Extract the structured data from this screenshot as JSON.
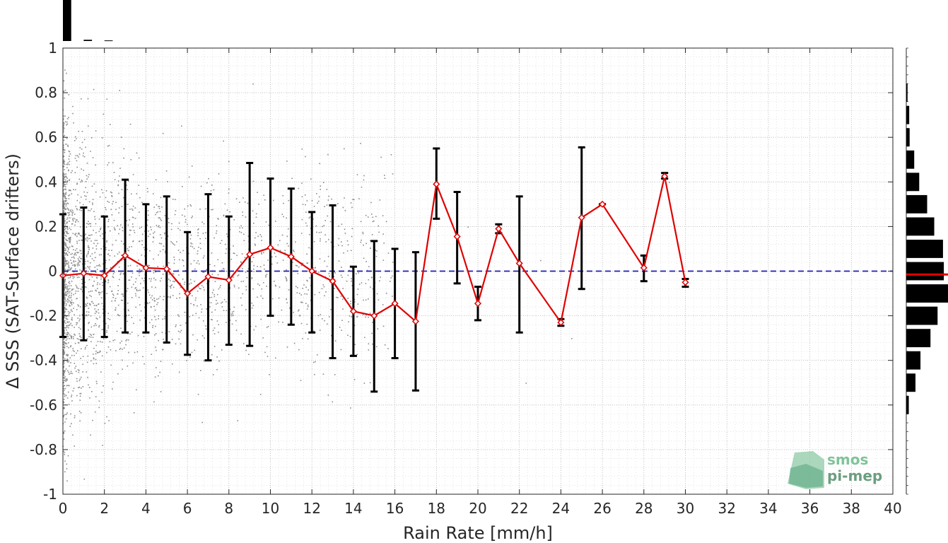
{
  "chart_data": {
    "type": "scatter",
    "xlabel": "Rain Rate [mm/h]",
    "ylabel": "Δ SSS (SAT-Surface drifters)",
    "xlim": [
      0,
      40
    ],
    "ylim": [
      -1,
      1
    ],
    "x_ticks": [
      "0",
      "2",
      "4",
      "6",
      "8",
      "10",
      "12",
      "14",
      "16",
      "18",
      "20",
      "22",
      "24",
      "26",
      "28",
      "30",
      "32",
      "34",
      "36",
      "38",
      "40"
    ],
    "y_ticks": [
      "1",
      "0.8",
      "0.6",
      "0.4",
      "0.2",
      "0",
      "-0.2",
      "-0.4",
      "-0.6",
      "-0.8",
      "-1"
    ],
    "grid": true,
    "reference_line": {
      "y": 0,
      "style": "dashed",
      "color": "#1f1fb4"
    },
    "binned_mean": {
      "color": "#e00000",
      "x": [
        0,
        1,
        2,
        3,
        4,
        5,
        6,
        7,
        8,
        9,
        10,
        11,
        12,
        13,
        14,
        15,
        16,
        17,
        18,
        19,
        20,
        21,
        22,
        24,
        25,
        26,
        28,
        29,
        30
      ],
      "y": [
        -0.02,
        -0.01,
        -0.02,
        0.07,
        0.015,
        0.01,
        -0.1,
        -0.025,
        -0.04,
        0.075,
        0.105,
        0.065,
        0.0,
        -0.045,
        -0.18,
        -0.2,
        -0.145,
        -0.225,
        0.39,
        0.155,
        -0.145,
        0.19,
        0.035,
        -0.23,
        0.24,
        0.3,
        0.015,
        0.425,
        -0.05
      ],
      "y_low": [
        -0.295,
        -0.31,
        -0.295,
        -0.275,
        -0.275,
        -0.32,
        -0.375,
        -0.4,
        -0.33,
        -0.335,
        -0.2,
        -0.24,
        -0.275,
        -0.39,
        -0.38,
        -0.54,
        -0.39,
        -0.535,
        0.235,
        -0.055,
        -0.22,
        0.17,
        -0.275,
        -0.245,
        -0.08,
        0.3,
        -0.045,
        0.415,
        -0.07
      ],
      "y_high": [
        0.255,
        0.285,
        0.245,
        0.41,
        0.3,
        0.335,
        0.175,
        0.345,
        0.245,
        0.485,
        0.415,
        0.37,
        0.265,
        0.295,
        0.02,
        0.135,
        0.1,
        0.085,
        0.55,
        0.355,
        -0.07,
        0.21,
        0.335,
        -0.215,
        0.555,
        0.3,
        0.07,
        0.44,
        -0.035
      ]
    },
    "scatter_color": "#8c8c8c",
    "top_histogram": {
      "x": [
        0,
        1,
        2
      ],
      "relative_counts": [
        1.0,
        0.03,
        0.015
      ],
      "color": "#000000"
    },
    "right_histogram": {
      "y": [
        0.8,
        0.7,
        0.6,
        0.5,
        0.4,
        0.3,
        0.2,
        0.1,
        0.0,
        -0.1,
        -0.2,
        -0.3,
        -0.4,
        -0.5,
        -0.6
      ],
      "relative_counts": [
        0.03,
        0.07,
        0.08,
        0.19,
        0.31,
        0.5,
        0.67,
        0.88,
        0.9,
        1.0,
        0.75,
        0.58,
        0.34,
        0.22,
        0.06
      ],
      "color": "#000000",
      "mean_marker": {
        "y": -0.015,
        "color": "#e00000"
      }
    }
  },
  "logo": {
    "line1": "smos",
    "line2": "pi-mep",
    "color_top": "#7fc39a",
    "color_bottom": "#6a9e80"
  }
}
